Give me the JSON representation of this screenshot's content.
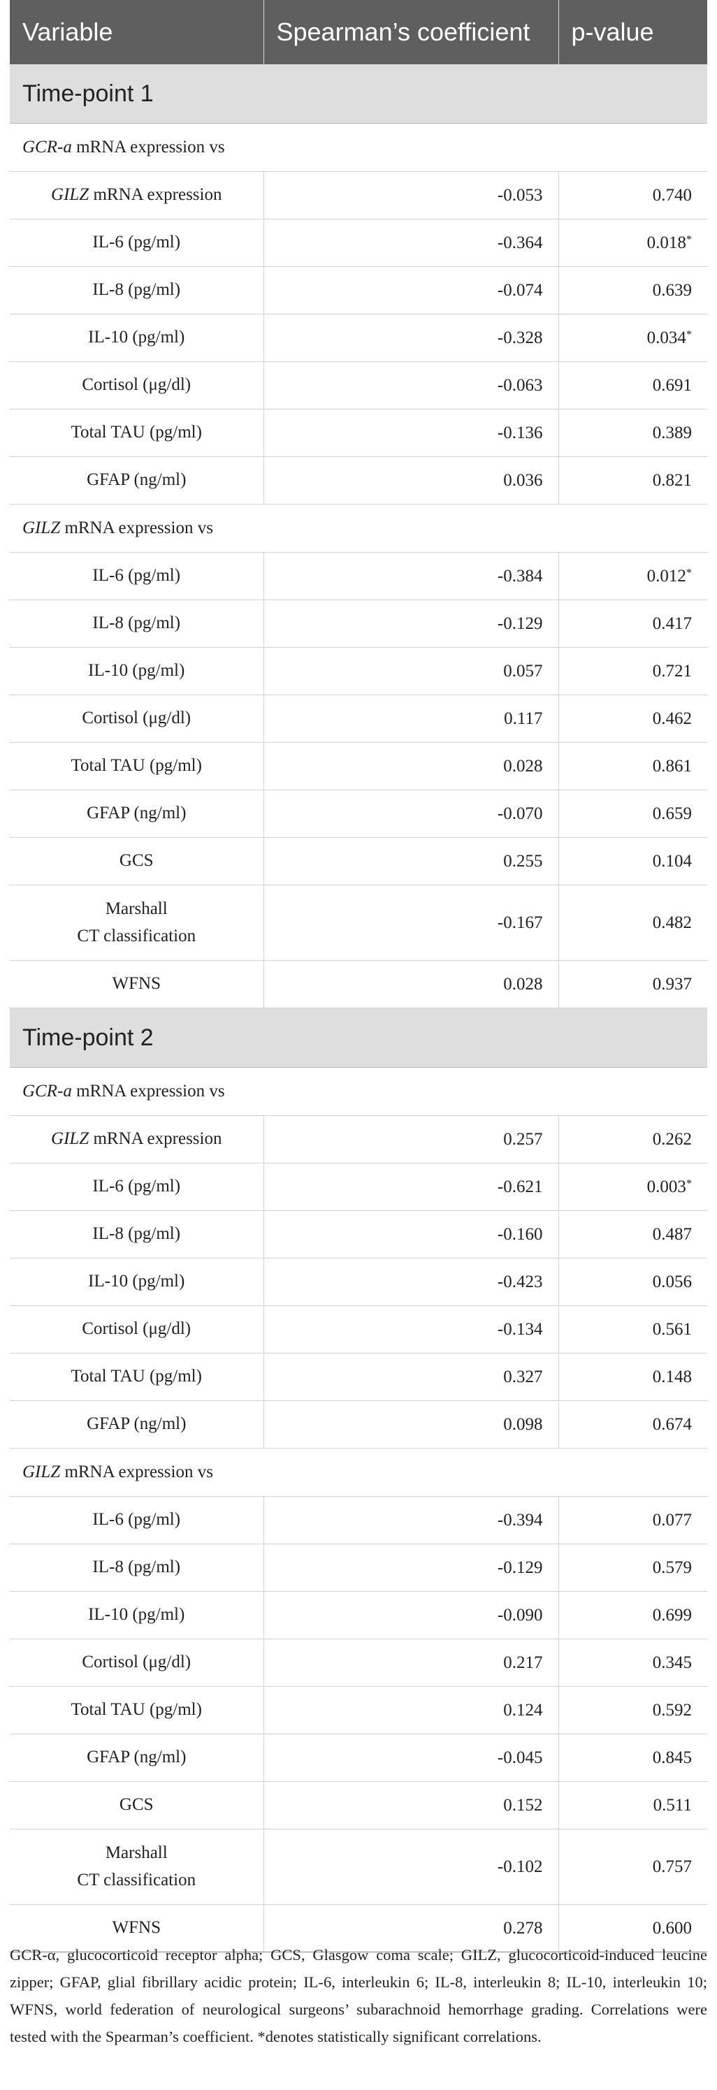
{
  "table": {
    "headers": [
      "Variable",
      "Spearman’s coefficient",
      "p-value"
    ],
    "sections": [
      {
        "label": "Time-point 1",
        "groups": [
          {
            "gene": "GCR-a",
            "suffix": " mRNA expression vs",
            "rows": [
              {
                "prefix": "GILZ",
                "text": " mRNA expression",
                "coef": "-0.053",
                "p": "0.740"
              },
              {
                "text": "IL-6 (pg/ml)",
                "coef": "-0.364",
                "p": "0.018",
                "star": "*"
              },
              {
                "text": "IL-8 (pg/ml)",
                "coef": "-0.074",
                "p": "0.639"
              },
              {
                "text": "IL-10 (pg/ml)",
                "coef": "-0.328",
                "p": "0.034",
                "star": "*"
              },
              {
                "text": "Cortisol (μg/dl)",
                "coef": "-0.063",
                "p": "0.691"
              },
              {
                "text": "Total TAU (pg/ml)",
                "coef": "-0.136",
                "p": "0.389"
              },
              {
                "text": "GFAP (ng/ml)",
                "coef": "0.036",
                "p": "0.821"
              }
            ]
          },
          {
            "gene": "GILZ",
            "suffix": " mRNA expression vs",
            "rows": [
              {
                "text": "IL-6 (pg/ml)",
                "coef": "-0.384",
                "p": "0.012",
                "star": "*"
              },
              {
                "text": "IL-8 (pg/ml)",
                "coef": "-0.129",
                "p": "0.417"
              },
              {
                "text": "IL-10 (pg/ml)",
                "coef": "0.057",
                "p": "0.721"
              },
              {
                "text": "Cortisol (μg/dl)",
                "coef": "0.117",
                "p": "0.462"
              },
              {
                "text": "Total TAU (pg/ml)",
                "coef": "0.028",
                "p": "0.861"
              },
              {
                "text": "GFAP (ng/ml)",
                "coef": "-0.070",
                "p": "0.659"
              },
              {
                "text": "GCS",
                "coef": "0.255",
                "p": "0.104"
              },
              {
                "text": "Marshall",
                "text2": "CT classification",
                "coef": "-0.167",
                "p": "0.482"
              },
              {
                "text": "WFNS",
                "coef": "0.028",
                "p": "0.937"
              }
            ]
          }
        ]
      },
      {
        "label": "Time-point 2",
        "groups": [
          {
            "gene": "GCR-a",
            "suffix": " mRNA expression vs",
            "rows": [
              {
                "prefix": "GILZ",
                "text": " mRNA expression",
                "coef": "0.257",
                "p": "0.262"
              },
              {
                "text": "IL-6 (pg/ml)",
                "coef": "-0.621",
                "p": "0.003",
                "star": "*"
              },
              {
                "text": "IL-8 (pg/ml)",
                "coef": "-0.160",
                "p": "0.487"
              },
              {
                "text": "IL-10 (pg/ml)",
                "coef": "-0.423",
                "p": "0.056"
              },
              {
                "text": "Cortisol (μg/dl)",
                "coef": "-0.134",
                "p": "0.561"
              },
              {
                "text": "Total TAU (pg/ml)",
                "coef": "0.327",
                "p": "0.148"
              },
              {
                "text": "GFAP (ng/ml)",
                "coef": "0.098",
                "p": "0.674"
              }
            ]
          },
          {
            "gene": "GILZ",
            "suffix": " mRNA expression vs",
            "rows": [
              {
                "text": "IL-6 (pg/ml)",
                "coef": "-0.394",
                "p": "0.077"
              },
              {
                "text": "IL-8 (pg/ml)",
                "coef": "-0.129",
                "p": "0.579"
              },
              {
                "text": "IL-10 (pg/ml)",
                "coef": "-0.090",
                "p": "0.699"
              },
              {
                "text": "Cortisol (μg/dl)",
                "coef": "0.217",
                "p": "0.345"
              },
              {
                "text": "Total TAU (pg/ml)",
                "coef": "0.124",
                "p": "0.592"
              },
              {
                "text": "GFAP (ng/ml)",
                "coef": "-0.045",
                "p": "0.845"
              },
              {
                "text": "GCS",
                "coef": "0.152",
                "p": "0.511"
              },
              {
                "text": "Marshall",
                "text2": "CT classification",
                "coef": "-0.102",
                "p": "0.757"
              },
              {
                "text": "WFNS",
                "coef": "0.278",
                "p": "0.600"
              }
            ]
          }
        ]
      }
    ]
  },
  "footnote": "GCR-α, glucocorticoid receptor alpha; GCS, Glasgow coma scale; GILZ, glucocorticoid-induced leucine zipper; GFAP, glial fibrillary acidic protein; IL-6, interleukin 6; IL-8, interleukin 8; IL-10, interleukin 10; WFNS, world federation of neurological surgeons’ subarachnoid hemorrhage grading. Correlations were tested with the Spearman’s coefficient. *denotes statistically significant correlations."
}
